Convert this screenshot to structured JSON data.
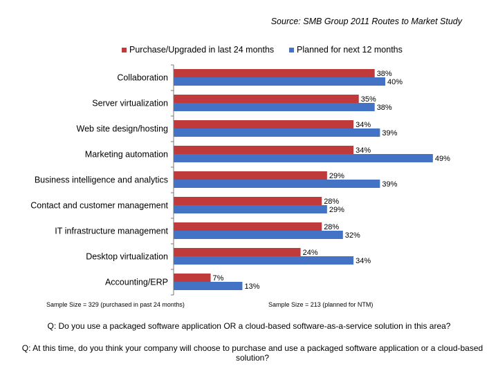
{
  "source": "Source: SMB Group 2011 Routes to Market Study",
  "colors": {
    "series1": "#c0393b",
    "series2": "#4472c4",
    "axis": "#777777"
  },
  "chart_data": {
    "type": "bar",
    "orientation": "horizontal",
    "categories": [
      "Collaboration",
      "Server virtualization",
      "Web site design/hosting",
      "Marketing automation",
      "Business intelligence and analytics",
      "Contact and customer management",
      "IT infrastructure management",
      "Desktop virtualization",
      "Accounting/ERP"
    ],
    "series": [
      {
        "name": "Purchase/Upgraded in last 24 months",
        "values": [
          38,
          35,
          34,
          34,
          29,
          28,
          28,
          24,
          7
        ],
        "color": "#c0393b"
      },
      {
        "name": "Planned for next 12 months",
        "values": [
          40,
          38,
          39,
          49,
          39,
          29,
          32,
          34,
          13
        ],
        "color": "#4472c4"
      }
    ],
    "value_suffix": "%",
    "xlim": [
      0,
      50
    ],
    "grid": false,
    "legend_position": "top",
    "xlabel": "",
    "ylabel": ""
  },
  "sample_sizes": {
    "left": "Sample Size = 329 (purchased in past 24 months)",
    "right": "Sample Size = 213 (planned for NTM)"
  },
  "questions": [
    "Q: Do you use a packaged software application OR a cloud-based software-as-a-service solution in this area?",
    "Q: At this time, do you think your company will choose to purchase and use a packaged software application or a cloud-based solution?"
  ]
}
